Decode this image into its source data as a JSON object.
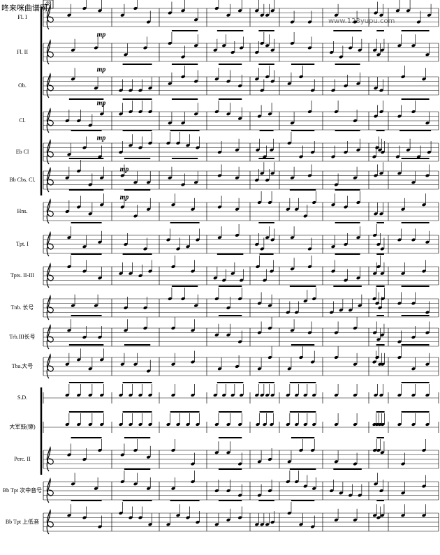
{
  "measure_number": "48",
  "watermark": {
    "site_name": "咚来咪曲谱网",
    "url": "www.123yupu.com"
  },
  "staves": [
    {
      "label": "Fl. I",
      "dynamic": "mp"
    },
    {
      "label": "Fl. II",
      "dynamic": "mp"
    },
    {
      "label": "Ob.",
      "dynamic": "mp"
    },
    {
      "label": "Cl.",
      "dynamic": "mp"
    },
    {
      "label": "Eb Cl",
      "dynamic": "mp"
    },
    {
      "label": "Bb Cbs. Cl.",
      "dynamic": "mp"
    },
    {
      "label": "Hns."
    },
    {
      "label": "Tpt. I"
    },
    {
      "label": "Tpts. II-III"
    },
    {
      "label": "Tnb. 长号"
    },
    {
      "label": "Trb.III长号"
    },
    {
      "label": "Tba.大号"
    },
    {
      "label": "S.D."
    },
    {
      "label": "大军鼓(镲)"
    },
    {
      "label": "Perc. II"
    },
    {
      "label": "Bb Tpt 次中音号"
    },
    {
      "label": "Bb Tpt 上低音"
    }
  ]
}
